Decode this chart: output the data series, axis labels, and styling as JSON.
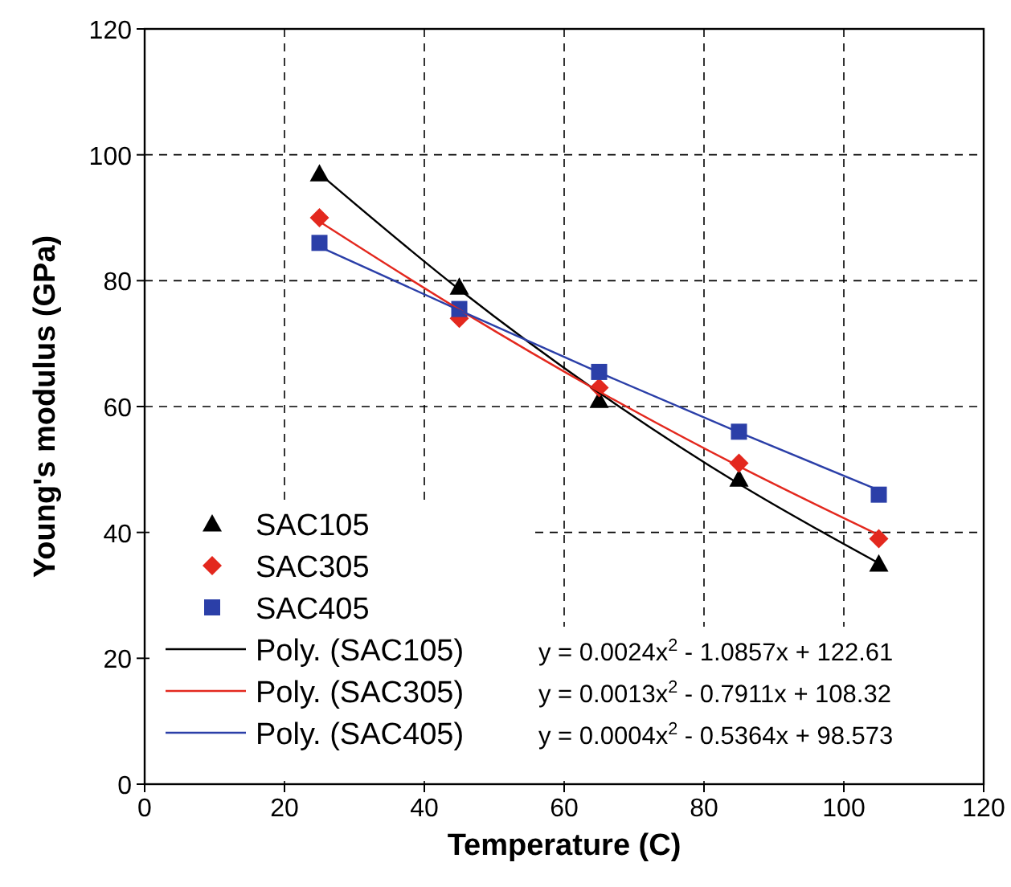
{
  "chart_data": {
    "type": "scatter",
    "xlabel": "Temperature (C)",
    "ylabel": "Young's modulus (GPa)",
    "xlim": [
      0,
      120
    ],
    "ylim": [
      0,
      120
    ],
    "xticks": [
      0,
      20,
      40,
      60,
      80,
      100,
      120
    ],
    "yticks": [
      0,
      20,
      40,
      60,
      80,
      100,
      120
    ],
    "grid": true,
    "legend": "bottom left",
    "series": [
      {
        "name": "SAC105",
        "marker": "triangle",
        "color": "#000000",
        "x": [
          25,
          45,
          65,
          85,
          105
        ],
        "values": [
          97,
          79,
          61,
          48.5,
          35
        ]
      },
      {
        "name": "SAC305",
        "marker": "diamond",
        "color": "#e3281e",
        "x": [
          25,
          45,
          65,
          85,
          105
        ],
        "values": [
          90,
          74,
          63,
          51,
          39
        ]
      },
      {
        "name": "SAC405",
        "marker": "square",
        "color": "#2b3fa8",
        "x": [
          25,
          45,
          65,
          85,
          105
        ],
        "values": [
          86,
          75.5,
          65.5,
          56,
          46
        ]
      },
      {
        "name": "Poly. (SAC105)",
        "type": "line",
        "marker": "none",
        "color": "#000000",
        "x": [
          25,
          45,
          65,
          85,
          105
        ],
        "values": [
          97.0,
          78.6,
          62.2,
          47.7,
          35.1
        ]
      },
      {
        "name": "Poly. (SAC305)",
        "type": "line",
        "marker": "none",
        "color": "#e3281e",
        "x": [
          25,
          45,
          65,
          85,
          105
        ],
        "values": [
          89.4,
          75.4,
          62.4,
          50.5,
          39.6
        ]
      },
      {
        "name": "Poly. (SAC405)",
        "type": "line",
        "marker": "none",
        "color": "#2b3fa8",
        "x": [
          25,
          45,
          65,
          85,
          105
        ],
        "values": [
          85.4,
          75.3,
          65.4,
          55.9,
          46.7
        ]
      }
    ],
    "annotations": [
      "y = 0.0024x$^{2}$ - 1.0857x + 122.61",
      "y = 0.0013x$^{2}$ - 0.7911x + 108.32",
      "y = 0.0004x$^{2}$ - 0.5364x + 98.573"
    ]
  }
}
